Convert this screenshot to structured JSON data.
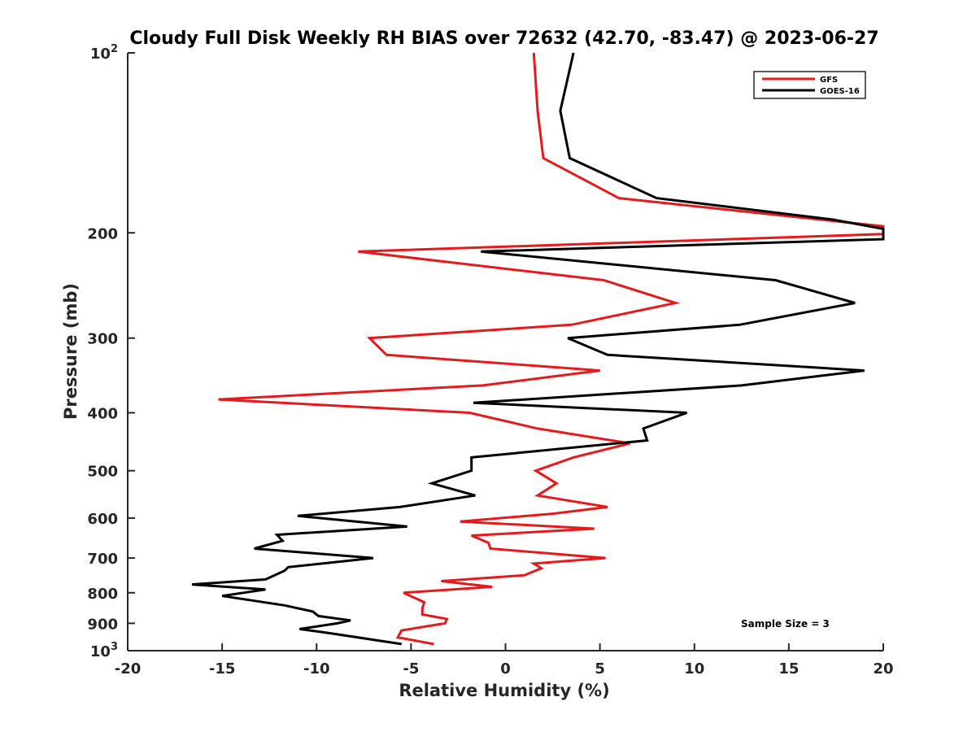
{
  "chart_data": {
    "type": "line",
    "title": "Cloudy Full Disk Weekly RH BIAS over 72632 (42.70, -83.47) @ 2023-06-27",
    "xlabel": "Relative Humidity (%)",
    "ylabel": "Pressure (mb)",
    "xlim": [
      -20,
      20
    ],
    "ylim": [
      100,
      1000
    ],
    "y_scale": "log",
    "y_reversed": true,
    "x_ticks": [
      "-20",
      "-15",
      "-10",
      "-5",
      "0",
      "5",
      "10",
      "15",
      "20"
    ],
    "y_ticks": [
      {
        "value": 100,
        "label": "10",
        "sup": "2"
      },
      {
        "value": 200,
        "label": "200",
        "sup": ""
      },
      {
        "value": 300,
        "label": "300",
        "sup": ""
      },
      {
        "value": 400,
        "label": "400",
        "sup": ""
      },
      {
        "value": 500,
        "label": "500",
        "sup": ""
      },
      {
        "value": 600,
        "label": "600",
        "sup": ""
      },
      {
        "value": 700,
        "label": "700",
        "sup": ""
      },
      {
        "value": 800,
        "label": "800",
        "sup": ""
      },
      {
        "value": 900,
        "label": "900",
        "sup": ""
      },
      {
        "value": 1000,
        "label": "10",
        "sup": "3"
      }
    ],
    "grid": false,
    "legend_position": "top-right",
    "series": [
      {
        "name": "GFS",
        "color": "#e41a1c",
        "points": [
          [
            1.5,
            100
          ],
          [
            1.7,
            125
          ],
          [
            2.0,
            150
          ],
          [
            6.0,
            175
          ],
          [
            20,
            195
          ],
          [
            20,
            201
          ],
          [
            -7.8,
            215
          ],
          [
            5.2,
            240
          ],
          [
            9.0,
            262
          ],
          [
            3.5,
            285
          ],
          [
            -7.2,
            300
          ],
          [
            -6.3,
            320
          ],
          [
            5.0,
            340
          ],
          [
            -1.2,
            360
          ],
          [
            -15.2,
            380
          ],
          [
            -1.9,
            400
          ],
          [
            1.7,
            425
          ],
          [
            6.6,
            450
          ],
          [
            3.6,
            475
          ],
          [
            1.6,
            500
          ],
          [
            2.7,
            525
          ],
          [
            1.7,
            550
          ],
          [
            5.4,
            575
          ],
          [
            2.5,
            590
          ],
          [
            -2.4,
            608
          ],
          [
            4.7,
            625
          ],
          [
            -1.8,
            642
          ],
          [
            -0.9,
            660
          ],
          [
            -0.8,
            675
          ],
          [
            5.3,
            700
          ],
          [
            1.5,
            715
          ],
          [
            1.9,
            728
          ],
          [
            1.0,
            748
          ],
          [
            -3.4,
            765
          ],
          [
            -0.7,
            782
          ],
          [
            -5.4,
            800
          ],
          [
            -4.3,
            830
          ],
          [
            -4.4,
            850
          ],
          [
            -4.4,
            870
          ],
          [
            -3.1,
            885
          ],
          [
            -3.2,
            900
          ],
          [
            -5.5,
            925
          ],
          [
            -5.7,
            950
          ],
          [
            -3.8,
            975
          ]
        ]
      },
      {
        "name": "GOES-16",
        "color": "#000000",
        "points": [
          [
            3.6,
            100
          ],
          [
            2.9,
            125
          ],
          [
            3.4,
            150
          ],
          [
            8.0,
            175
          ],
          [
            17.3,
            190
          ],
          [
            20,
            197
          ],
          [
            20,
            205
          ],
          [
            -1.3,
            215
          ],
          [
            14.3,
            240
          ],
          [
            18.5,
            262
          ],
          [
            12.4,
            285
          ],
          [
            3.3,
            300
          ],
          [
            5.4,
            320
          ],
          [
            19.0,
            340
          ],
          [
            12.5,
            360
          ],
          [
            -1.7,
            385
          ],
          [
            9.6,
            400
          ],
          [
            7.3,
            425
          ],
          [
            7.5,
            445
          ],
          [
            -1.8,
            475
          ],
          [
            -1.8,
            500
          ],
          [
            -3.9,
            525
          ],
          [
            -1.6,
            550
          ],
          [
            -5.6,
            575
          ],
          [
            -11.0,
            595
          ],
          [
            -5.2,
            620
          ],
          [
            -12.1,
            640
          ],
          [
            -11.8,
            655
          ],
          [
            -13.3,
            675
          ],
          [
            -7.0,
            700
          ],
          [
            -11.5,
            725
          ],
          [
            -11.7,
            735
          ],
          [
            -12.7,
            760
          ],
          [
            -16.6,
            775
          ],
          [
            -12.7,
            790
          ],
          [
            -15.0,
            810
          ],
          [
            -11.7,
            840
          ],
          [
            -10.2,
            860
          ],
          [
            -9.9,
            875
          ],
          [
            -8.2,
            890
          ],
          [
            -8.9,
            900
          ],
          [
            -10.9,
            920
          ],
          [
            -9.3,
            935
          ],
          [
            -5.5,
            975
          ]
        ]
      }
    ],
    "annotation": "Sample Size = 3"
  }
}
